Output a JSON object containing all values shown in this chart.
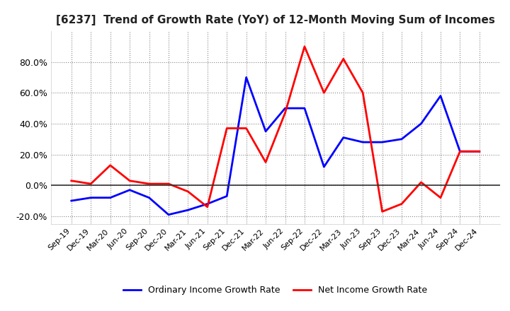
{
  "title": "[6237]  Trend of Growth Rate (YoY) of 12-Month Moving Sum of Incomes",
  "x_labels": [
    "Sep-19",
    "Dec-19",
    "Mar-20",
    "Jun-20",
    "Sep-20",
    "Dec-20",
    "Mar-21",
    "Jun-21",
    "Sep-21",
    "Dec-21",
    "Mar-22",
    "Jun-22",
    "Sep-22",
    "Dec-22",
    "Mar-23",
    "Jun-23",
    "Sep-23",
    "Dec-23",
    "Mar-24",
    "Jun-24",
    "Sep-24",
    "Dec-24"
  ],
  "ordinary_income": [
    -0.1,
    -0.08,
    -0.08,
    -0.03,
    -0.08,
    -0.19,
    -0.16,
    -0.12,
    -0.07,
    0.7,
    0.35,
    0.5,
    0.5,
    0.12,
    0.31,
    0.28,
    0.28,
    0.3,
    0.4,
    0.58,
    0.22,
    0.22
  ],
  "net_income": [
    0.03,
    0.01,
    0.13,
    0.03,
    0.01,
    0.01,
    -0.04,
    -0.14,
    0.37,
    0.37,
    0.15,
    0.47,
    0.9,
    0.6,
    0.82,
    0.6,
    -0.17,
    -0.12,
    0.02,
    -0.08,
    0.22,
    0.22
  ],
  "ordinary_color": "#0000ff",
  "net_color": "#ff0000",
  "ylim": [
    -0.25,
    1.0
  ],
  "yticks": [
    -0.2,
    0.0,
    0.2,
    0.4,
    0.6,
    0.8
  ],
  "background_color": "#ffffff",
  "grid_color": "#888888",
  "legend_ordinary": "Ordinary Income Growth Rate",
  "legend_net": "Net Income Growth Rate"
}
